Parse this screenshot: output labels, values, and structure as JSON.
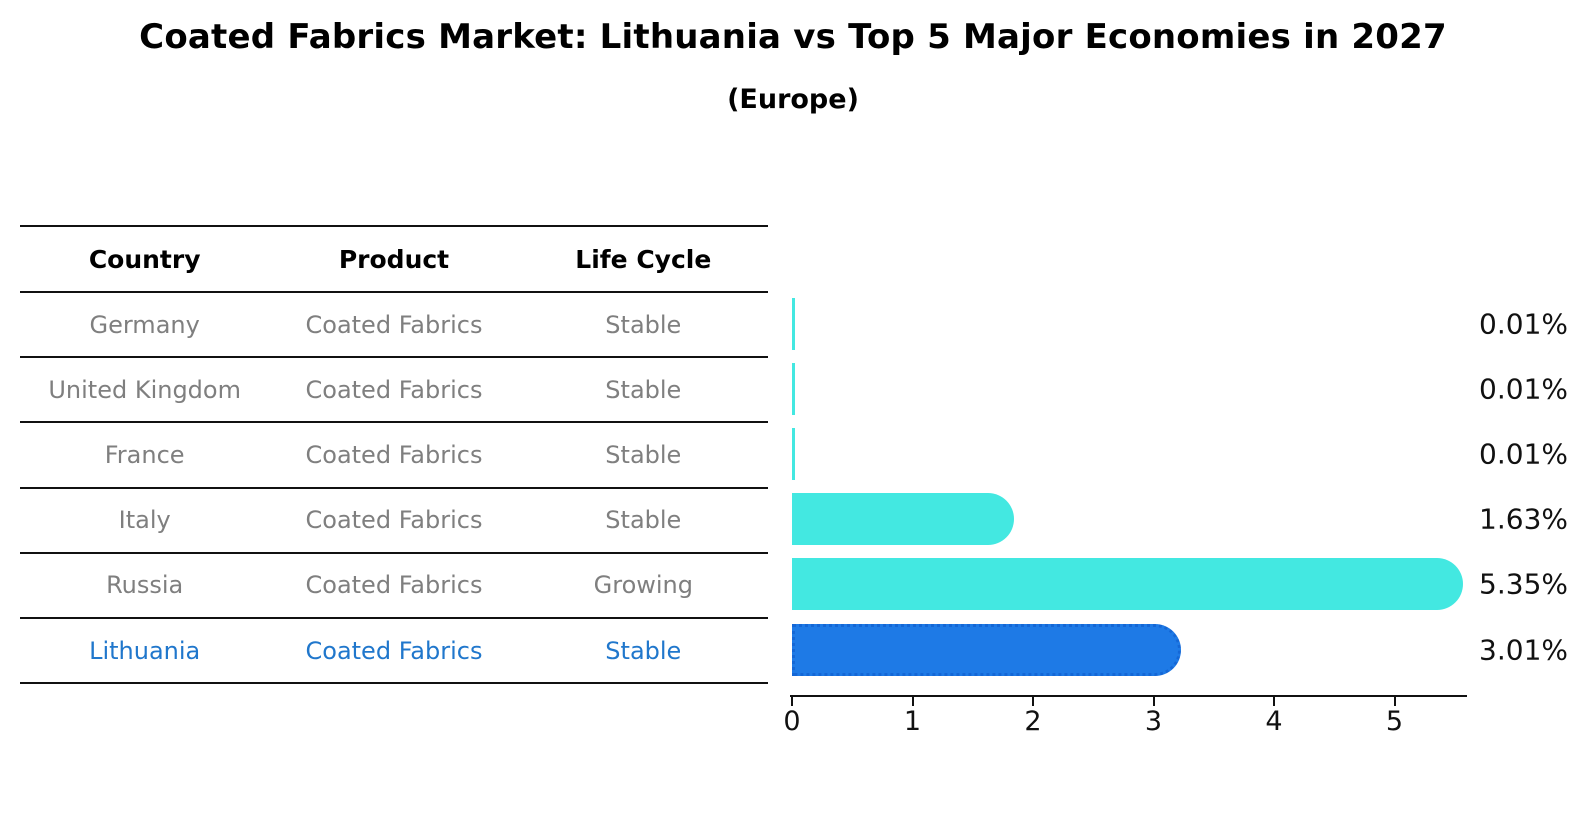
{
  "title": "Coated Fabrics Market: Lithuania vs Top 5 Major Economies in 2027",
  "subtitle": "(Europe)",
  "table": {
    "headers": [
      "Country",
      "Product",
      "Life Cycle"
    ],
    "rows": [
      {
        "country": "Germany",
        "product": "Coated Fabrics",
        "life_cycle": "Stable",
        "highlight": false
      },
      {
        "country": "United Kingdom",
        "product": "Coated Fabrics",
        "life_cycle": "Stable",
        "highlight": false
      },
      {
        "country": "France",
        "product": "Coated Fabrics",
        "life_cycle": "Stable",
        "highlight": false
      },
      {
        "country": "Italy",
        "product": "Coated Fabrics",
        "life_cycle": "Stable",
        "highlight": false
      },
      {
        "country": "Russia",
        "product": "Coated Fabrics",
        "life_cycle": "Growing",
        "highlight": false
      },
      {
        "country": "Lithuania",
        "product": "Coated Fabrics",
        "life_cycle": "Stable",
        "highlight": true
      }
    ]
  },
  "chart_data": {
    "type": "bar",
    "orientation": "horizontal",
    "title": "Coated Fabrics Market: Lithuania vs Top 5 Major Economies in 2027 (Europe)",
    "categories": [
      "Germany",
      "United Kingdom",
      "France",
      "Italy",
      "Russia",
      "Lithuania"
    ],
    "values": [
      0.01,
      0.01,
      0.01,
      1.63,
      5.35,
      3.01
    ],
    "value_labels": [
      "0.01%",
      "0.01%",
      "0.01%",
      "1.63%",
      "5.35%",
      "3.01%"
    ],
    "highlight_index": 5,
    "x_ticks": [
      0,
      1,
      2,
      3,
      4,
      5
    ],
    "xlim": [
      0,
      5.6
    ],
    "grid": false,
    "legend": false,
    "colors": {
      "bar_default": "#43e8e1",
      "bar_highlight": "#1e7ae6",
      "bar_highlight_border": "#1467d6",
      "highlight_text": "#2077cc",
      "muted_text": "#7f7f7f",
      "axis": "#111111"
    }
  }
}
